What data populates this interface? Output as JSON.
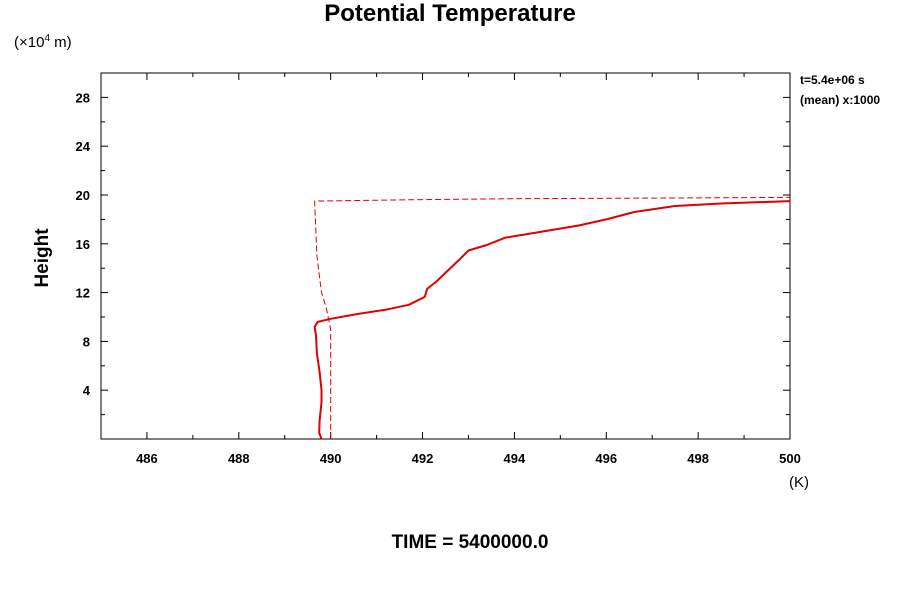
{
  "chart_data": {
    "type": "line",
    "title": "Potential Temperature",
    "ylabel": "Height",
    "yunit": "(×10",
    "yunit_exp": "4",
    "yunit_suffix": " m)",
    "xunit": "(K)",
    "annotation_time": "t=5.4e+06 s",
    "annotation_mean": "(mean) x:1000",
    "footer": "TIME = 5400000.0",
    "xlim": [
      485,
      500
    ],
    "ylim": [
      0,
      30
    ],
    "xticks": [
      "486",
      "488",
      "490",
      "492",
      "494",
      "496",
      "498",
      "500"
    ],
    "yticks": [
      "4",
      "8",
      "12",
      "16",
      "20",
      "24",
      "28"
    ],
    "series": [
      {
        "style": "solid",
        "color": "#e00000",
        "points": [
          [
            489.8,
            0
          ],
          [
            489.75,
            0.5
          ],
          [
            489.76,
            1.5
          ],
          [
            489.8,
            3.0
          ],
          [
            489.8,
            4.0
          ],
          [
            489.76,
            5.5
          ],
          [
            489.7,
            7.0
          ],
          [
            489.68,
            8.5
          ],
          [
            489.65,
            9.2
          ],
          [
            489.72,
            9.6
          ],
          [
            490.0,
            9.85
          ],
          [
            490.6,
            10.25
          ],
          [
            491.2,
            10.6
          ],
          [
            491.7,
            11.0
          ],
          [
            492.05,
            11.65
          ],
          [
            492.1,
            12.3
          ],
          [
            492.3,
            12.9
          ],
          [
            492.55,
            13.8
          ],
          [
            492.8,
            14.7
          ],
          [
            493.0,
            15.45
          ],
          [
            493.4,
            15.9
          ],
          [
            493.8,
            16.5
          ],
          [
            494.6,
            17.0
          ],
          [
            495.4,
            17.5
          ],
          [
            496.0,
            18.0
          ],
          [
            496.6,
            18.6
          ],
          [
            497.5,
            19.1
          ],
          [
            498.5,
            19.3
          ],
          [
            500.0,
            19.5
          ]
        ]
      },
      {
        "style": "dashed",
        "color": "#e00000",
        "points": [
          [
            490.0,
            0
          ],
          [
            490.0,
            9.0
          ],
          [
            489.9,
            10.8
          ],
          [
            489.8,
            12.0
          ],
          [
            489.7,
            15.0
          ],
          [
            489.65,
            19.5
          ],
          [
            491.5,
            19.6
          ],
          [
            494.0,
            19.7
          ],
          [
            497.0,
            19.75
          ],
          [
            500.0,
            19.8
          ]
        ]
      }
    ]
  }
}
